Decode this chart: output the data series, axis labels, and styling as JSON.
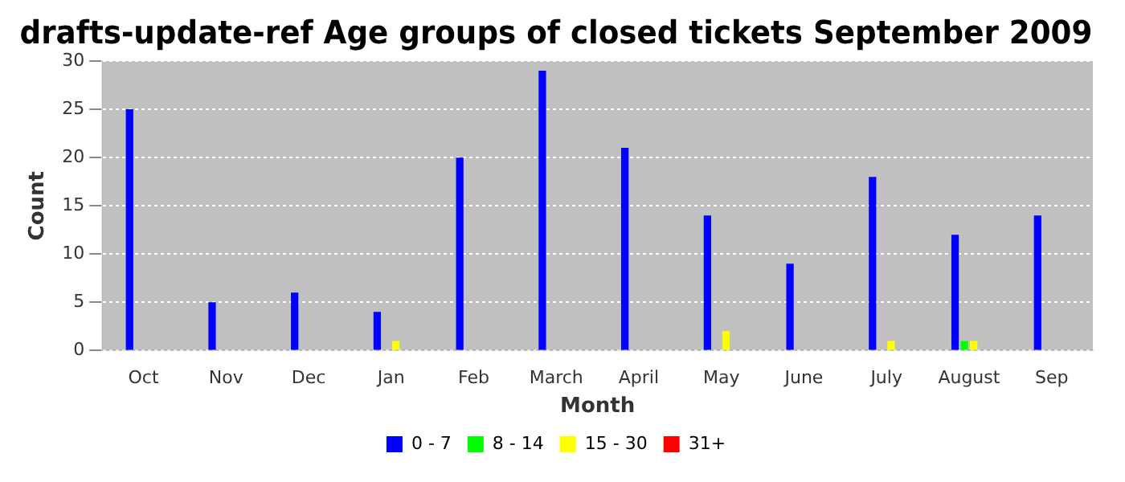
{
  "chart_data": {
    "type": "bar",
    "title": "drafts-update-ref Age groups of closed tickets September 2009",
    "xlabel": "Month",
    "ylabel": "Count",
    "categories": [
      "Oct",
      "Nov",
      "Dec",
      "Jan",
      "Feb",
      "March",
      "April",
      "May",
      "June",
      "July",
      "August",
      "Sep"
    ],
    "series": [
      {
        "name": "0 - 7",
        "color": "#0000ff",
        "values": [
          25,
          5,
          6,
          4,
          20,
          29,
          21,
          14,
          9,
          18,
          12,
          14
        ]
      },
      {
        "name": "8 - 14",
        "color": "#00ff00",
        "values": [
          0,
          0,
          0,
          0,
          0,
          0,
          0,
          0,
          0,
          0,
          1,
          0
        ]
      },
      {
        "name": "15 - 30",
        "color": "#ffff00",
        "values": [
          0,
          0,
          0,
          1,
          0,
          0,
          0,
          2,
          0,
          1,
          1,
          0
        ]
      },
      {
        "name": "31+",
        "color": "#ff0000",
        "values": [
          0,
          0,
          0,
          0,
          0,
          0,
          0,
          0,
          0,
          0,
          0,
          0
        ]
      }
    ],
    "ylim": [
      0,
      30
    ],
    "yticks": [
      0,
      5,
      10,
      15,
      20,
      25,
      30
    ],
    "grid": "y",
    "legend": "bottom"
  }
}
